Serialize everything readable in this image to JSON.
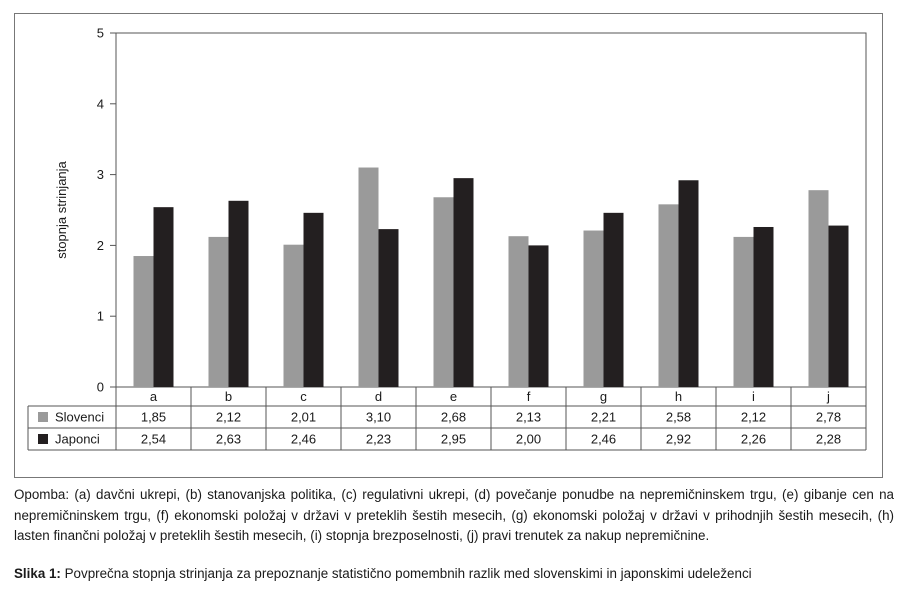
{
  "chart_data": {
    "type": "bar",
    "categories": [
      "a",
      "b",
      "c",
      "d",
      "e",
      "f",
      "g",
      "h",
      "i",
      "j"
    ],
    "series": [
      {
        "name": "Slovenci",
        "color": "#9a9a9a",
        "values": [
          1.85,
          2.12,
          2.01,
          3.1,
          2.68,
          2.13,
          2.21,
          2.58,
          2.12,
          2.78
        ],
        "labels": [
          "1,85",
          "2,12",
          "2,01",
          "3,10",
          "2,68",
          "2,13",
          "2,21",
          "2,58",
          "2,12",
          "2,78"
        ]
      },
      {
        "name": "Japonci",
        "color": "#231f20",
        "values": [
          2.54,
          2.63,
          2.46,
          2.23,
          2.95,
          2.0,
          2.46,
          2.92,
          2.26,
          2.28
        ],
        "labels": [
          "2,54",
          "2,63",
          "2,46",
          "2,23",
          "2,95",
          "2,00",
          "2,46",
          "2,92",
          "2,26",
          "2,28"
        ]
      }
    ],
    "ylabel": "stopnja strinjanja",
    "ylim": [
      0,
      5
    ],
    "yticks": [
      0,
      1,
      2,
      3,
      4,
      5
    ],
    "grid": false,
    "legend": "data-table-below"
  },
  "note": "Opomba: (a) davčni ukrepi, (b) stanovanjska politika, (c) regulativni ukrepi, (d) povečanje ponudbe na nepremičninskem trgu, (e) gibanje cen na nepremičninskem trgu, (f) ekonomski položaj v državi v preteklih šestih mesecih, (g) ekonomski položaj v državi v prihodnjih šestih mesecih, (h) lasten finančni položaj v preteklih šestih mesecih, (i) stopnja brezposelnosti, (j) pravi trenutek za nakup nepremičnine.",
  "caption": {
    "label": "Slika 1:",
    "text": " Povprečna stopnja strinjanja za prepoznanje statistično pomembnih razlik med slovenskimi in japonskimi udeleženci"
  }
}
